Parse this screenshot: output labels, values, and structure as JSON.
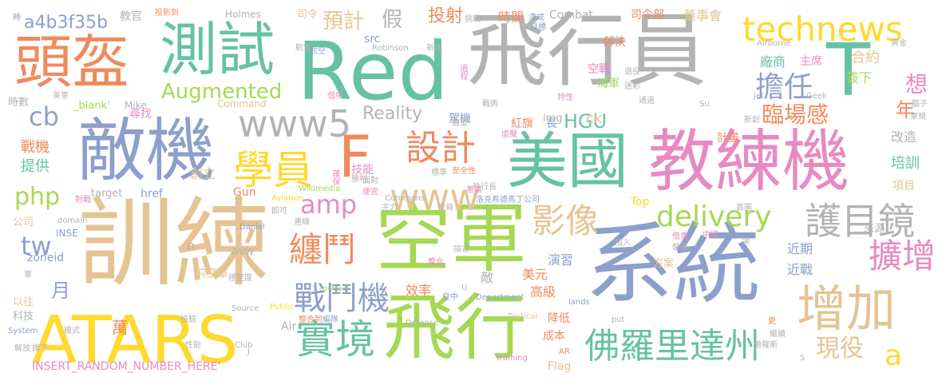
{
  "palette": {
    "orange": "#f08a5d",
    "green": "#66c2a5",
    "blue": "#8da0cb",
    "pink": "#e78ac3",
    "lime": "#a6d854",
    "yellow": "#ffd92f",
    "tan": "#e5c494",
    "gray": "#b3b3b3"
  },
  "words": [
    {
      "text": "Red"
    },
    {
      "text": "飛行員"
    },
    {
      "text": "系統"
    },
    {
      "text": "訓練"
    },
    {
      "text": "空軍"
    },
    {
      "text": "教練機"
    },
    {
      "text": "美國"
    },
    {
      "text": "敵機"
    },
    {
      "text": "頭盔"
    },
    {
      "text": "測試"
    },
    {
      "text": "ATARS"
    },
    {
      "text": "飛行"
    },
    {
      "text": "T"
    },
    {
      "text": "technews"
    },
    {
      "text": "佛羅里達州"
    },
    {
      "text": "增加"
    },
    {
      "text": "護目鏡"
    },
    {
      "text": "學員"
    },
    {
      "text": "F"
    },
    {
      "text": "實境"
    },
    {
      "text": "www5"
    },
    {
      "text": "www"
    },
    {
      "text": "設計"
    },
    {
      "text": "影像"
    },
    {
      "text": "擴增"
    },
    {
      "text": "纏鬥"
    },
    {
      "text": "戰鬥機"
    },
    {
      "text": "delivery"
    },
    {
      "text": "amp"
    },
    {
      "text": "擔任"
    },
    {
      "text": "現役"
    },
    {
      "text": "臨場感"
    },
    {
      "text": "Augmented"
    },
    {
      "text": "a4b3f35b"
    },
    {
      "text": "php"
    },
    {
      "text": "cb"
    },
    {
      "text": "tw"
    },
    {
      "text": "a"
    },
    {
      "text": "HGU"
    },
    {
      "text": "Reality"
    },
    {
      "text": "假"
    },
    {
      "text": "預計"
    },
    {
      "text": "投射"
    },
    {
      "text": "想"
    },
    {
      "text": "年"
    },
    {
      "text": "萬"
    },
    {
      "text": "月"
    },
    {
      "text": "董事會"
    },
    {
      "text": "時間"
    },
    {
      "text": "合約"
    },
    {
      "text": "廠商"
    },
    {
      "text": "簽下"
    },
    {
      "text": "主席"
    },
    {
      "text": "司令部"
    },
    {
      "text": "Combat"
    },
    {
      "text": "ck"
    },
    {
      "text": "戰機"
    },
    {
      "text": "提供"
    },
    {
      "text": "尋找"
    },
    {
      "text": "技能"
    },
    {
      "text": "創立"
    },
    {
      "text": "培訓"
    },
    {
      "text": "改造"
    },
    {
      "text": "近期"
    },
    {
      "text": "近戰"
    },
    {
      "text": "演習"
    },
    {
      "text": "美元"
    },
    {
      "text": "高級"
    },
    {
      "text": "效率"
    },
    {
      "text": "降低"
    },
    {
      "text": "成本"
    },
    {
      "text": "Top"
    },
    {
      "text": "Gun"
    },
    {
      "text": "href"
    },
    {
      "text": "target"
    },
    {
      "text": "img"
    },
    {
      "text": "zoneid"
    },
    {
      "text": "src"
    },
    {
      "text": "INSERT_RANDOM_NUMBER_HERE'"
    },
    {
      "text": "_blank'"
    },
    {
      "text": "Mike"
    },
    {
      "text": "Holmes"
    },
    {
      "text": "Command"
    },
    {
      "text": "Airborne"
    },
    {
      "text": "Tactical"
    },
    {
      "text": "Defense"
    },
    {
      "text": "Department"
    },
    {
      "text": "Source"
    },
    {
      "text": "Public"
    },
    {
      "text": "Aviation"
    },
    {
      "text": "Wikimedia"
    },
    {
      "text": "Commons"
    },
    {
      "text": "Robinson"
    },
    {
      "text": "Daniel"
    },
    {
      "text": "lands"
    },
    {
      "text": "training"
    },
    {
      "text": "Flag"
    },
    {
      "text": "AR"
    },
    {
      "text": "Air"
    },
    {
      "text": "avw"
    },
    {
      "text": "Club"
    },
    {
      "text": "System"
    },
    {
      "text": "contract"
    },
    {
      "text": "domain"
    },
    {
      "text": "INSE"
    },
    {
      "text": "put"
    },
    {
      "text": "jet"
    },
    {
      "text": "Geek"
    },
    {
      "text": "Su"
    },
    {
      "text": "n"
    },
    {
      "text": "U"
    },
    {
      "text": "J"
    },
    {
      "text": "S"
    },
    {
      "text": "教官"
    },
    {
      "text": "時數"
    },
    {
      "text": "公司"
    },
    {
      "text": "以往"
    },
    {
      "text": "科技"
    },
    {
      "text": "解放"
    },
    {
      "text": "軍"
    },
    {
      "text": "前空軍"
    },
    {
      "text": "駕機"
    },
    {
      "text": "紅旗"
    },
    {
      "text": "長"
    },
    {
      "text": "計畫"
    },
    {
      "text": "方案"
    },
    {
      "text": "來源"
    },
    {
      "text": "項目"
    },
    {
      "text": "空戰"
    },
    {
      "text": "海軍"
    },
    {
      "text": "解決"
    },
    {
      "text": "敵"
    },
    {
      "text": "司令"
    },
    {
      "text": "洛克希德馬丁公司"
    },
    {
      "text": "安全性"
    },
    {
      "text": "標準"
    },
    {
      "text": "執行長"
    },
    {
      "text": "穩定度"
    },
    {
      "text": "整合到"
    },
    {
      "text": "編隊"
    },
    {
      "text": "空中"
    },
    {
      "text": "投影到"
    },
    {
      "text": "漆成"
    },
    {
      "text": "挑戰"
    },
    {
      "text": "過程"
    },
    {
      "text": "新進"
    },
    {
      "text": "退役"
    },
    {
      "text": "迷彩"
    },
    {
      "text": "傲羅斯"
    },
    {
      "text": "資金"
    },
    {
      "text": "面對"
    },
    {
      "text": "便宜"
    },
    {
      "text": "虛擬"
    },
    {
      "text": "造型"
    },
    {
      "text": "特性"
    },
    {
      "text": "借重"
    },
    {
      "text": "中國"
    },
    {
      "text": "裝備"
    },
    {
      "text": "戰術"
    },
    {
      "text": "借中"
    },
    {
      "text": "航電"
    },
    {
      "text": "美軍"
    },
    {
      "text": "對戰"
    },
    {
      "text": "性能"
    },
    {
      "text": "模式"
    },
    {
      "text": "旗下"
    },
    {
      "text": "主力"
    },
    {
      "text": "投資"
    },
    {
      "text": "即可"
    },
    {
      "text": "連線"
    },
    {
      "text": "腦子"
    },
    {
      "text": "軍規"
    },
    {
      "text": "勝利"
    },
    {
      "text": "確保"
    },
    {
      "text": "目標"
    },
    {
      "text": "檢驗"
    },
    {
      "text": "通過"
    },
    {
      "text": "新創"
    },
    {
      "text": "首圖"
    },
    {
      "text": "架"
    },
    {
      "text": "更"
    },
    {
      "text": "繼續"
    },
    {
      "text": "時"
    },
    {
      "text": "航空"
    },
    {
      "text": "描述"
    },
    {
      "text": "整合"
    },
    {
      "text": "軍事"
    },
    {
      "text": "加入"
    }
  ]
}
